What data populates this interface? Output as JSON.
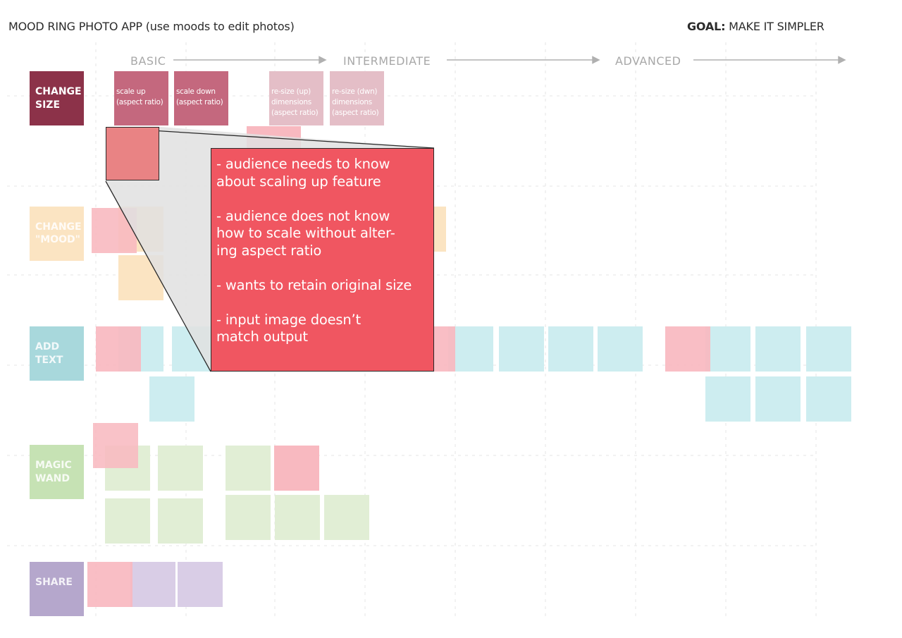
{
  "header": {
    "title": "MOOD RING PHOTO APP (use moods to edit photos)",
    "goal_label": "GOAL:",
    "goal_text": " MAKE IT SIMPLER"
  },
  "stages": [
    "BASIC",
    "INTERMEDIATE",
    "ADVANCED"
  ],
  "colors": {
    "change_size": "#8c3249",
    "feature_primary": "#c4687e",
    "feature_light": "#e4bec7",
    "mood": "#fbe4c2",
    "text_teal": "#a8d8dc",
    "teal_box": "#cdedf0",
    "magic": "#c6e2b4",
    "green_box": "#e1eed5",
    "share": "#b5a7cc",
    "purple_box": "#d9cde6",
    "pink": "#f8b9c0",
    "popup": "#f05661"
  },
  "rows": [
    {
      "label_line1": "CHANGE",
      "label_line2": "SIZE"
    },
    {
      "label_line1": "CHANGE",
      "label_line2": "\"MOOD\""
    },
    {
      "label_line1": "ADD",
      "label_line2": "TEXT"
    },
    {
      "label_line1": "MAGIC",
      "label_line2": "WAND"
    },
    {
      "label_line1": "SHARE",
      "label_line2": ""
    }
  ],
  "features": [
    {
      "line1": "scale up",
      "line2": "(aspect ratio)",
      "line3": ""
    },
    {
      "line1": "scale down",
      "line2": "(aspect ratio)",
      "line3": ""
    },
    {
      "line1": "re-size (up)",
      "line2": "dimensions",
      "line3": "(aspect ratio)"
    },
    {
      "line1": "re-size (dwn)",
      "line2": "dimensions",
      "line3": "(aspect ratio)"
    }
  ],
  "popup": {
    "note1_line1": "- audience needs to know",
    "note1_line2": "about scaling up feature",
    "note2_line1": "- audience does not know",
    "note2_line2": "how to scale without alter-",
    "note2_line3": "ing aspect ratio",
    "note3": "- wants to retain original size",
    "note4_line1": "- input image doesn’t",
    "note4_line2": "match output"
  }
}
